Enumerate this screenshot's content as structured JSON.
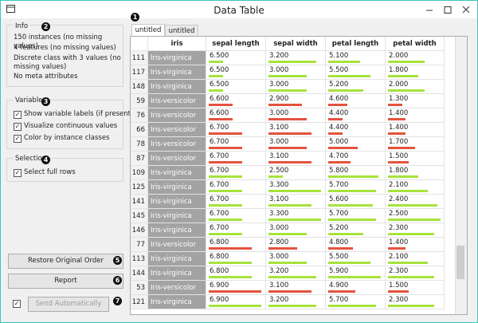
{
  "window": {
    "title": "Data Table"
  },
  "badges": [
    "1",
    "2",
    "3",
    "4",
    "5",
    "6",
    "7"
  ],
  "info": {
    "title": "Info",
    "lines": [
      "150 instances (no missing values)",
      "4 features (no missing values)",
      "Discrete class with 3 values (no missing values)",
      "No meta attributes"
    ]
  },
  "variables": {
    "title": "Variables",
    "options": [
      "Show variable labels (if present)",
      "Visualize continuous values",
      "Color by instance classes"
    ]
  },
  "selection": {
    "title": "Selection",
    "options": [
      "Select full rows"
    ]
  },
  "buttons": {
    "restore": "Restore Original Order",
    "report": "Report",
    "send": "Send Automatically"
  },
  "tabs": [
    "untitled",
    "untitled"
  ],
  "table": {
    "columns": [
      "iris",
      "sepal length",
      "sepal width",
      "petal length",
      "petal width"
    ],
    "rows": [
      {
        "id": 111,
        "class": "Iris-virginica",
        "color": "#a6e33c",
        "values": [
          "6.500",
          "3.200",
          "5.100",
          "2.000"
        ]
      },
      {
        "id": 117,
        "class": "Iris-virginica",
        "color": "#a6e33c",
        "values": [
          "6.500",
          "3.000",
          "5.500",
          "1.800"
        ]
      },
      {
        "id": 148,
        "class": "Iris-virginica",
        "color": "#a6e33c",
        "values": [
          "6.500",
          "3.000",
          "5.200",
          "2.000"
        ]
      },
      {
        "id": 59,
        "class": "Iris-versicolor",
        "color": "#e4533e",
        "values": [
          "6.600",
          "2.900",
          "4.600",
          "1.300"
        ]
      },
      {
        "id": 76,
        "class": "Iris-versicolor",
        "color": "#e4533e",
        "values": [
          "6.600",
          "3.000",
          "4.400",
          "1.400"
        ]
      },
      {
        "id": 66,
        "class": "Iris-versicolor",
        "color": "#e4533e",
        "values": [
          "6.700",
          "3.100",
          "4.400",
          "1.400"
        ]
      },
      {
        "id": 78,
        "class": "Iris-versicolor",
        "color": "#e4533e",
        "values": [
          "6.700",
          "3.000",
          "5.000",
          "1.700"
        ]
      },
      {
        "id": 87,
        "class": "Iris-versicolor",
        "color": "#e4533e",
        "values": [
          "6.700",
          "3.100",
          "4.700",
          "1.500"
        ]
      },
      {
        "id": 109,
        "class": "Iris-virginica",
        "color": "#a6e33c",
        "values": [
          "6.700",
          "2.500",
          "5.800",
          "1.800"
        ]
      },
      {
        "id": 125,
        "class": "Iris-virginica",
        "color": "#a6e33c",
        "values": [
          "6.700",
          "3.300",
          "5.700",
          "2.100"
        ]
      },
      {
        "id": 141,
        "class": "Iris-virginica",
        "color": "#a6e33c",
        "values": [
          "6.700",
          "3.100",
          "5.600",
          "2.400"
        ]
      },
      {
        "id": 145,
        "class": "Iris-virginica",
        "color": "#a6e33c",
        "values": [
          "6.700",
          "3.300",
          "5.700",
          "2.500"
        ]
      },
      {
        "id": 146,
        "class": "Iris-virginica",
        "color": "#a6e33c",
        "values": [
          "6.700",
          "3.000",
          "5.200",
          "2.300"
        ]
      },
      {
        "id": 77,
        "class": "Iris-versicolor",
        "color": "#e4533e",
        "values": [
          "6.800",
          "2.800",
          "4.800",
          "1.400"
        ]
      },
      {
        "id": 113,
        "class": "Iris-virginica",
        "color": "#a6e33c",
        "values": [
          "6.800",
          "3.000",
          "5.500",
          "2.100"
        ]
      },
      {
        "id": 144,
        "class": "Iris-virginica",
        "color": "#a6e33c",
        "values": [
          "6.800",
          "3.200",
          "5.900",
          "2.300"
        ]
      },
      {
        "id": 53,
        "class": "Iris-versicolor",
        "color": "#e4533e",
        "values": [
          "6.900",
          "3.100",
          "4.900",
          "1.500"
        ]
      },
      {
        "id": 121,
        "class": "Iris-virginica",
        "color": "#a6e33c",
        "values": [
          "6.900",
          "3.200",
          "5.700",
          "2.300"
        ]
      }
    ]
  }
}
